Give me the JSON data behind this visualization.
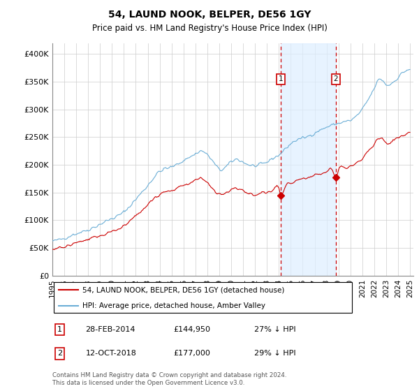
{
  "title": "54, LAUND NOOK, BELPER, DE56 1GY",
  "subtitle": "Price paid vs. HM Land Registry's House Price Index (HPI)",
  "hpi_label": "HPI: Average price, detached house, Amber Valley",
  "price_label": "54, LAUND NOOK, BELPER, DE56 1GY (detached house)",
  "transaction1_date": "28-FEB-2014",
  "transaction1_price": 144950,
  "transaction1_pct": "27% ↓ HPI",
  "transaction2_date": "12-OCT-2018",
  "transaction2_price": 177000,
  "transaction2_pct": "29% ↓ HPI",
  "footnote": "Contains HM Land Registry data © Crown copyright and database right 2024.\nThis data is licensed under the Open Government Licence v3.0.",
  "hpi_color": "#6baed6",
  "price_color": "#cc0000",
  "vline_color": "#cc0000",
  "shade_color": "#ddeeff",
  "ylim": [
    0,
    420000
  ],
  "yticks": [
    0,
    50000,
    100000,
    150000,
    200000,
    250000,
    300000,
    350000,
    400000
  ],
  "ytick_labels": [
    "£0",
    "£50K",
    "£100K",
    "£150K",
    "£200K",
    "£250K",
    "£300K",
    "£350K",
    "£400K"
  ],
  "transaction1_x": 2014.17,
  "transaction2_x": 2018.78,
  "xmin": 1995,
  "xmax": 2025.3
}
